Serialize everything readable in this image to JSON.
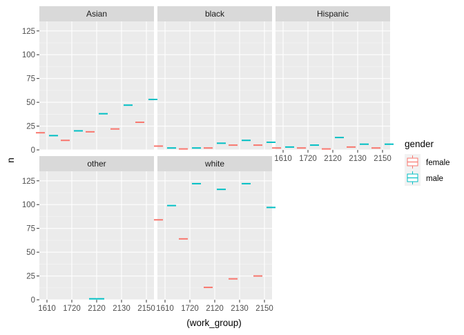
{
  "chart_data": {
    "type": "boxplot",
    "facet_by": "race",
    "x_label": "(work_group)",
    "y_label": "n",
    "categories": [
      "1610",
      "1720",
      "2120",
      "2130",
      "2150"
    ],
    "y_range": [
      0,
      135
    ],
    "y_ticks": [
      0,
      25,
      50,
      75,
      100,
      125
    ],
    "grid": true,
    "legend": {
      "title": "gender",
      "placement": "right",
      "entries": [
        {
          "name": "female",
          "color": "#F8766D"
        },
        {
          "name": "male",
          "color": "#00BFC4"
        }
      ]
    },
    "facets": [
      {
        "name": "Asian",
        "female": {
          "1610": 18,
          "1720": 10,
          "2120": 19,
          "2130": 22,
          "2150": 29
        },
        "male": {
          "1610": 15,
          "1720": 20,
          "2120": 38,
          "2130": 47,
          "2150": 53
        }
      },
      {
        "name": "black",
        "female": {
          "1610": 4,
          "1720": 1,
          "2120": 2,
          "2130": 5,
          "2150": 5
        },
        "male": {
          "1610": 2,
          "1720": 2,
          "2120": 7,
          "2130": 10,
          "2150": 8
        }
      },
      {
        "name": "Hispanic",
        "female": {
          "1610": 2,
          "1720": 2,
          "2120": 1,
          "2130": 3,
          "2150": 2
        },
        "male": {
          "1610": 3,
          "1720": 5,
          "2120": 13,
          "2130": 6,
          "2150": 6
        }
      },
      {
        "name": "other",
        "female": {},
        "male": {
          "2120": 1
        }
      },
      {
        "name": "white",
        "female": {
          "1610": 84,
          "1720": 64,
          "2120": 13,
          "2130": 22,
          "2150": 25
        },
        "male": {
          "1610": 99,
          "1720": 122,
          "2120": 116,
          "2130": 122,
          "2150": 97
        }
      }
    ]
  }
}
